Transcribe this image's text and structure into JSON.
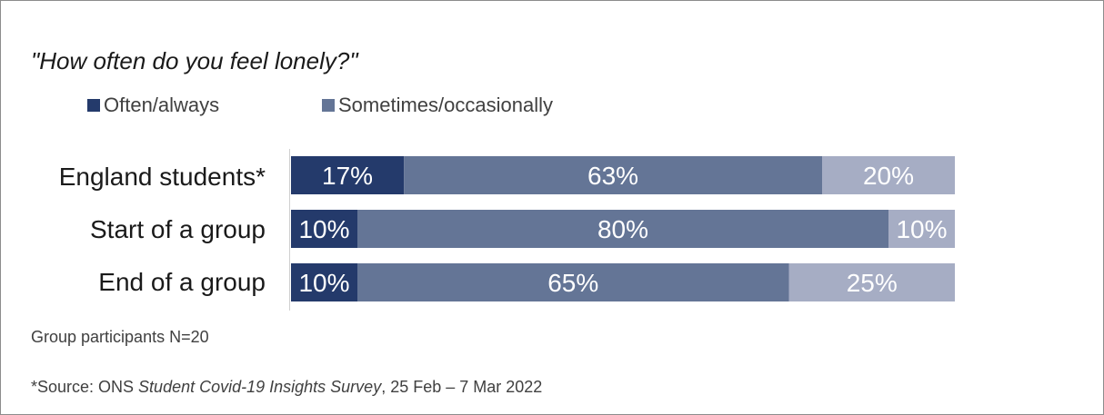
{
  "chart_data": {
    "type": "bar",
    "orientation": "horizontal",
    "stacked": true,
    "title": "\"How often do you feel lonely?\"",
    "categories": [
      "England students*",
      "Start of a group",
      "End of a group"
    ],
    "series": [
      {
        "name": "Often/always",
        "values": [
          17,
          10,
          10
        ],
        "labels": [
          "17%",
          "10%",
          "10%"
        ],
        "color": "#243a6b"
      },
      {
        "name": "Sometimes/occasionally",
        "values": [
          63,
          80,
          65
        ],
        "labels": [
          "63%",
          "80%",
          "65%"
        ],
        "color": "#647596"
      },
      {
        "name": "",
        "values": [
          20,
          10,
          25
        ],
        "labels": [
          "20%",
          "10%",
          "25%"
        ],
        "color": "#a6adc4"
      }
    ],
    "xlim": [
      0,
      100
    ],
    "legend_position": "top-left",
    "grid": false
  },
  "notes": {
    "participants": "Group participants N=20",
    "source_prefix": "*Source: ONS ",
    "source_title": "Student Covid-19 Insights Survey",
    "source_suffix": ", 25 Feb – 7 Mar 2022"
  }
}
